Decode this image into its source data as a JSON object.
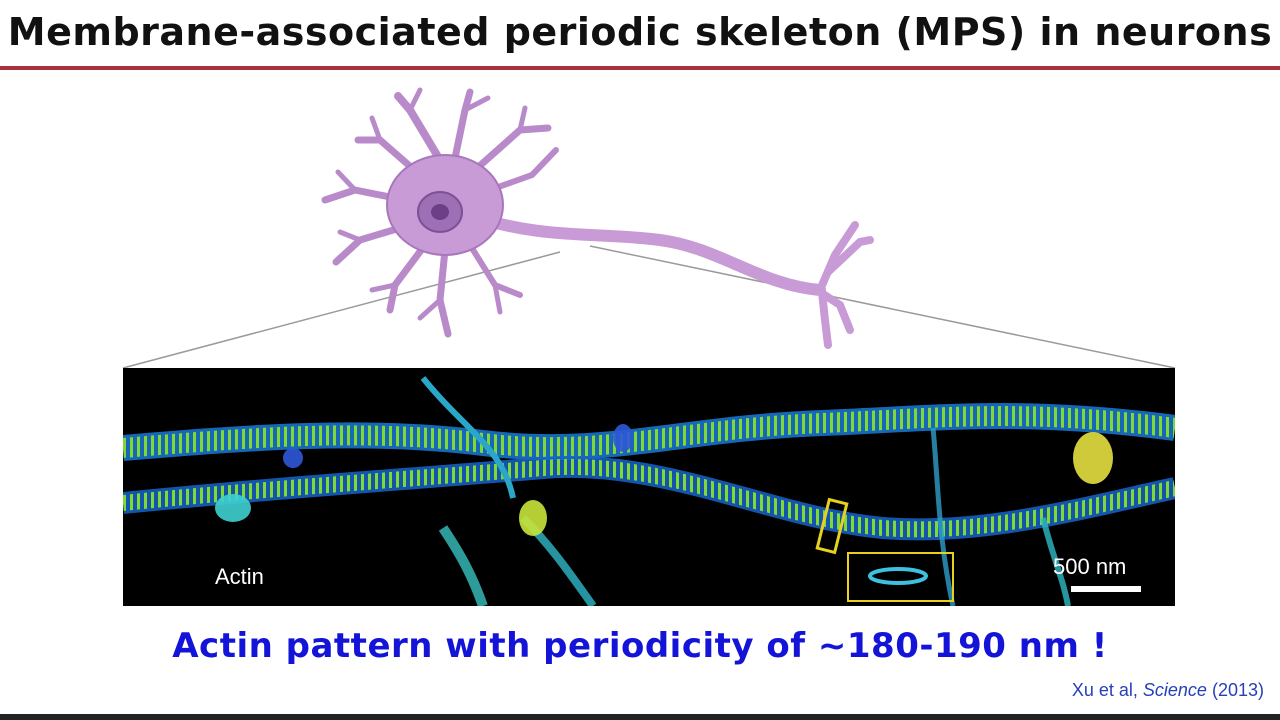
{
  "slide": {
    "title": "Membrane-associated periodic skeleton (MPS) in neurons",
    "caption": "Actin pattern with periodicity of ~180-190 nm !",
    "citation": {
      "authors": "Xu et al,",
      "journal": "Science",
      "year": "(2013)"
    }
  },
  "figure": {
    "neuron_icon": "neuron-illustration",
    "micrograph": {
      "channel_label": "Actin",
      "scale_bar_label": "500 nm"
    }
  },
  "colors": {
    "title_rule": "#a8323e",
    "caption": "#1414d8",
    "citation": "#2740b8",
    "neuron": "#c89ad6",
    "highlight_box": "#e6d21e"
  }
}
